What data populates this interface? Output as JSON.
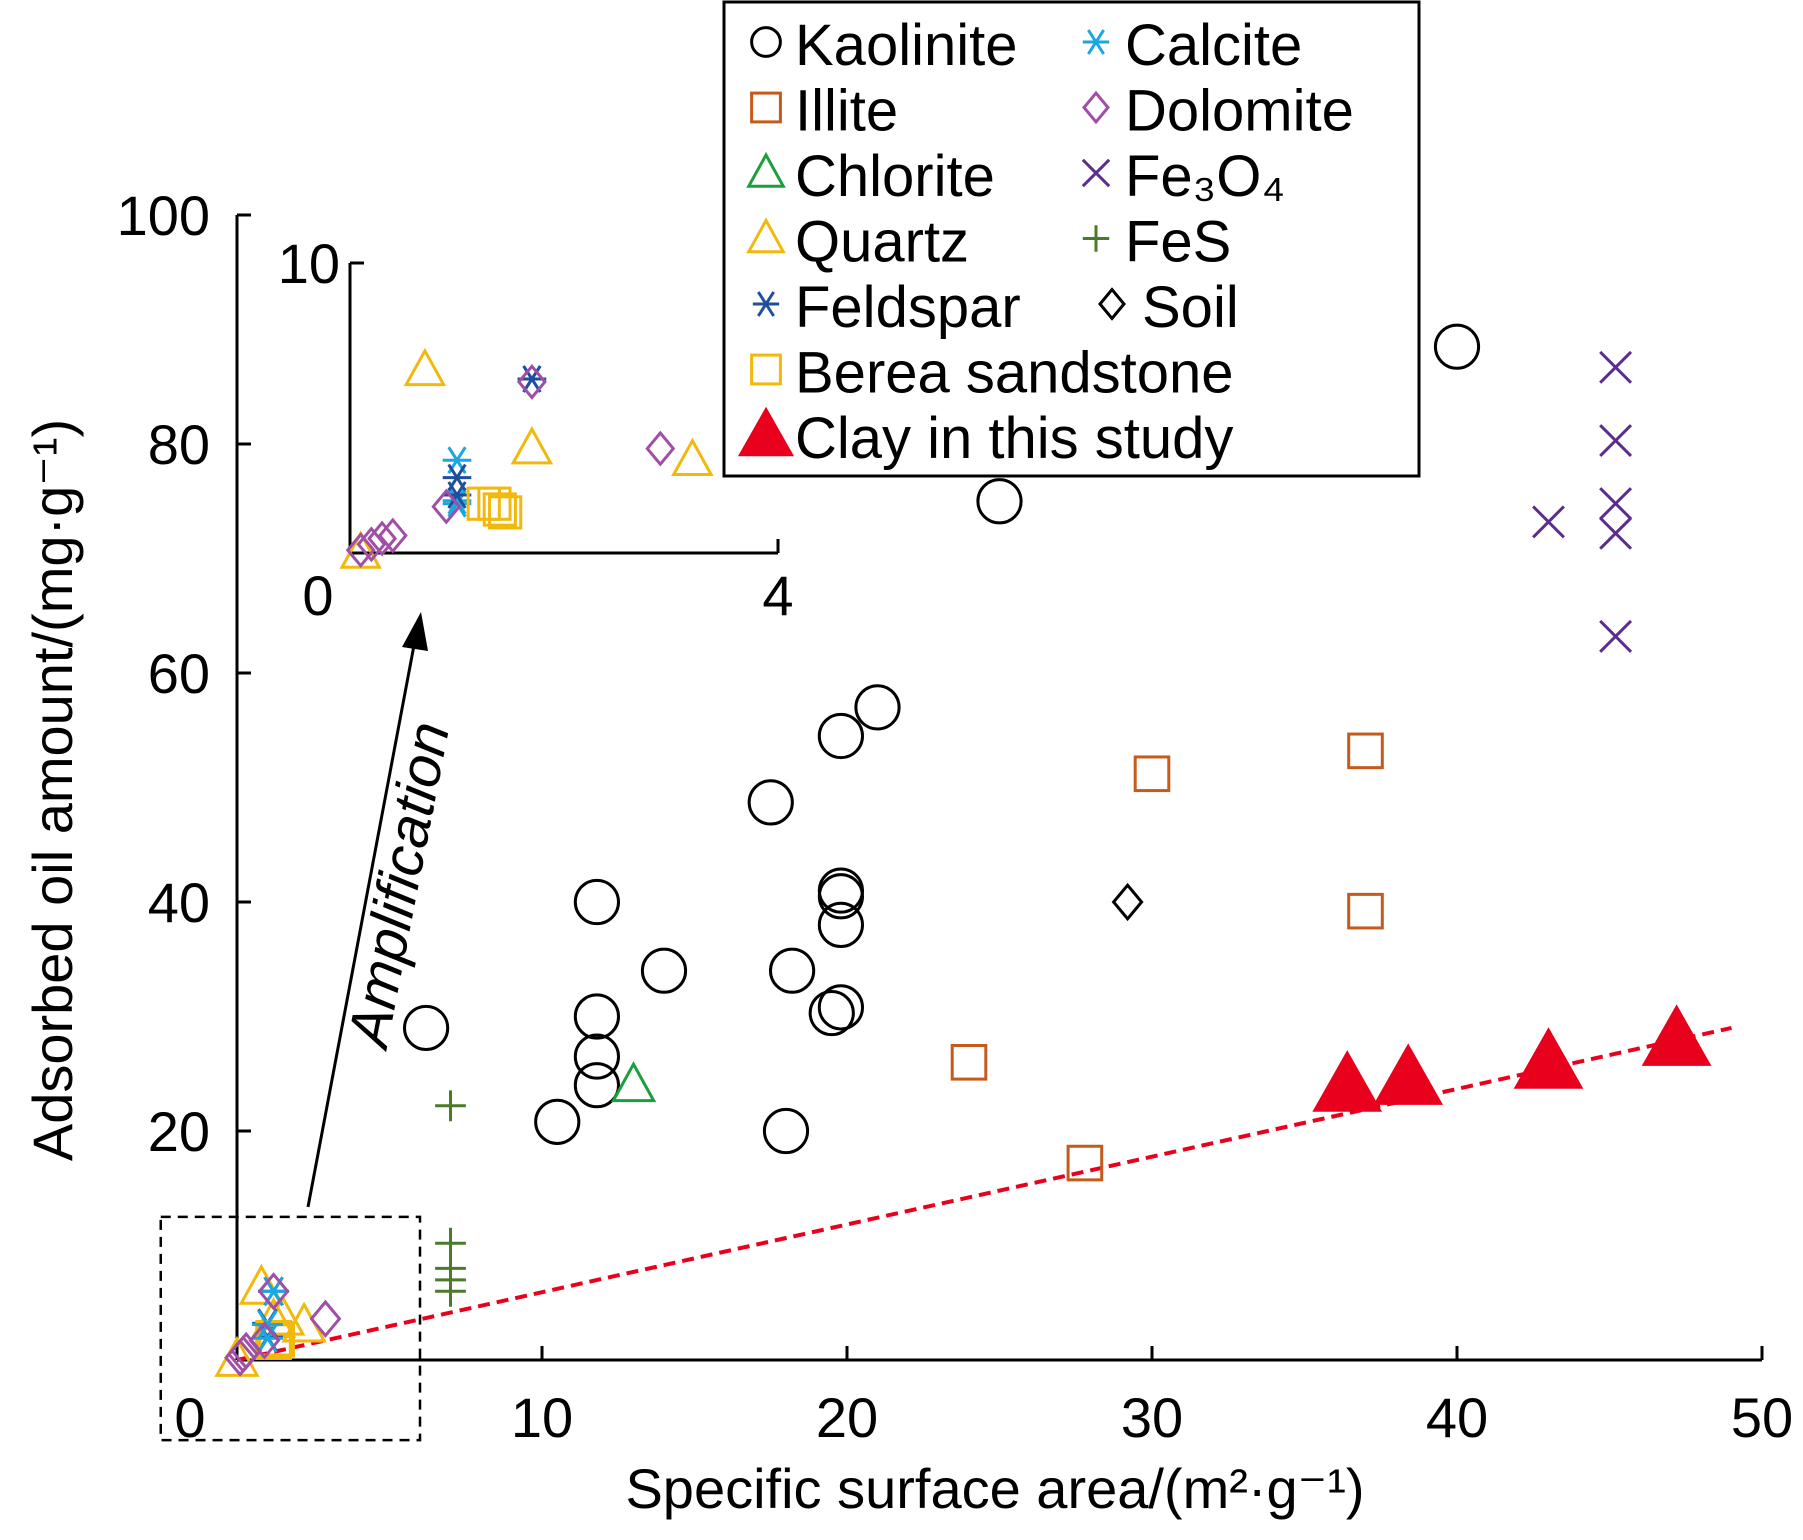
{
  "chart_data": {
    "type": "scatter",
    "xlabel": "Specific surface area/(m²·g⁻¹)",
    "ylabel": "Adsorbed oil amount/(mg·g⁻¹)",
    "xlim": [
      0,
      50
    ],
    "ylim": [
      0,
      100
    ],
    "x_ticks": [
      "0",
      "10",
      "20",
      "30",
      "40",
      "50"
    ],
    "y_ticks": [
      "20",
      "40",
      "60",
      "80",
      "100"
    ],
    "grid": false,
    "legend_position": "top-right",
    "series": [
      {
        "name": "Kaolinite",
        "marker": "circle",
        "color": "#000000",
        "points": [
          [
            6.2,
            29
          ],
          [
            10.5,
            20.8
          ],
          [
            11.8,
            40
          ],
          [
            11.8,
            30
          ],
          [
            11.8,
            26.5
          ],
          [
            11.8,
            24
          ],
          [
            14,
            34
          ],
          [
            17.5,
            48.7
          ],
          [
            18,
            20
          ],
          [
            18.2,
            34
          ],
          [
            19.5,
            30.3
          ],
          [
            19.8,
            30.8
          ],
          [
            19.8,
            38
          ],
          [
            19.8,
            40.5
          ],
          [
            19.8,
            41
          ],
          [
            19.8,
            54.5
          ],
          [
            21,
            57
          ],
          [
            25,
            75
          ],
          [
            40,
            88.5
          ]
        ]
      },
      {
        "name": "Illite",
        "marker": "square",
        "color": "#c55a1c",
        "points": [
          [
            24,
            26
          ],
          [
            27.8,
            17.2
          ],
          [
            30,
            51.2
          ],
          [
            37,
            53.2
          ],
          [
            37,
            39.2
          ]
        ]
      },
      {
        "name": "Chlorite",
        "marker": "triangle",
        "color": "#1a9f3c",
        "points": [
          [
            13,
            24
          ]
        ]
      },
      {
        "name": "Quartz",
        "marker": "triangle",
        "color": "#f2b90c",
        "points": [
          [
            0,
            0
          ],
          [
            0.8,
            6.3
          ],
          [
            1.2,
            3.4
          ],
          [
            1.5,
            3.6
          ],
          [
            2.2,
            3.0
          ]
        ]
      },
      {
        "name": "Feldspar",
        "marker": "asterisk",
        "color": "#1f4e9e",
        "points": [
          [
            1.0,
            3.2
          ],
          [
            1.0,
            2.0
          ],
          [
            1.2,
            6
          ]
        ]
      },
      {
        "name": "Berea sandstone",
        "marker": "square",
        "color": "#f2b90c",
        "points": [
          [
            1.2,
            1.9
          ],
          [
            1.3,
            1.8
          ],
          [
            1.2,
            1.6
          ]
        ]
      },
      {
        "name": "Calcite",
        "marker": "asterisk",
        "color": "#1aa7e0",
        "points": [
          [
            1.0,
            3.1
          ],
          [
            1.0,
            1.9
          ],
          [
            1.2,
            6
          ]
        ]
      },
      {
        "name": "Dolomite",
        "marker": "diamond",
        "color": "#a04ea6",
        "points": [
          [
            0.1,
            0.2
          ],
          [
            0.2,
            0.5
          ],
          [
            0.3,
            0.8
          ],
          [
            0.9,
            1.7
          ],
          [
            1.2,
            6
          ],
          [
            2.9,
            3.6
          ]
        ]
      },
      {
        "name": "Fe₃O₄",
        "marker": "x",
        "color": "#5b2d8e",
        "points": [
          [
            43,
            73.2
          ],
          [
            45.2,
            86.7
          ],
          [
            45.2,
            80.3
          ],
          [
            45.2,
            74.8
          ],
          [
            45.2,
            72.2
          ],
          [
            45.2,
            63.2
          ]
        ]
      },
      {
        "name": "FeS",
        "marker": "plus",
        "color": "#4b7a2a",
        "points": [
          [
            7,
            22.2
          ],
          [
            7,
            10.2
          ],
          [
            7,
            8
          ],
          [
            7,
            7
          ],
          [
            7,
            6
          ]
        ]
      },
      {
        "name": "Soil",
        "marker": "diamond",
        "color": "#000000",
        "points": [
          [
            29.2,
            40
          ]
        ]
      },
      {
        "name": "Clay in this study",
        "marker": "filled-triangle",
        "color": "#e8001c",
        "points": [
          [
            36.4,
            24
          ],
          [
            38.4,
            24.6
          ],
          [
            43,
            26
          ],
          [
            47.2,
            28
          ]
        ]
      }
    ],
    "trendline": {
      "color": "#e8001c",
      "style": "dashed",
      "points": [
        [
          0,
          0
        ],
        [
          49,
          29
        ]
      ]
    },
    "inset": {
      "xlim": [
        0,
        4
      ],
      "ylim": [
        0,
        10
      ],
      "x_ticks": [
        "0",
        "4"
      ],
      "y_ticks": [
        "10"
      ],
      "source_region": {
        "x": [
          -2.5,
          6
        ],
        "y": [
          -7,
          12.5
        ]
      },
      "series": [
        {
          "name": "Quartz",
          "marker": "triangle",
          "color": "#f2b90c",
          "points": [
            [
              0.1,
              0
            ],
            [
              0.7,
              6.3
            ],
            [
              1.7,
              3.6
            ],
            [
              3.2,
              3.2
            ]
          ]
        },
        {
          "name": "Calcite",
          "marker": "asterisk",
          "color": "#1aa7e0",
          "points": [
            [
              1.0,
              3.2
            ],
            [
              1.0,
              1.8
            ],
            [
              1.0,
              1.7
            ],
            [
              1.7,
              6.0
            ]
          ]
        },
        {
          "name": "Feldspar",
          "marker": "asterisk",
          "color": "#1f4e9e",
          "points": [
            [
              1.0,
              2.6
            ],
            [
              1.0,
              2.0
            ],
            [
              1.7,
              6.0
            ]
          ]
        },
        {
          "name": "Dolomite",
          "marker": "diamond",
          "color": "#a04ea6",
          "points": [
            [
              0.1,
              0.1
            ],
            [
              0.2,
              0.3
            ],
            [
              0.3,
              0.5
            ],
            [
              0.4,
              0.6
            ],
            [
              0.9,
              1.6
            ],
            [
              1.7,
              5.9
            ],
            [
              2.9,
              3.6
            ]
          ]
        },
        {
          "name": "Berea sandstone",
          "marker": "square",
          "color": "#f2b90c",
          "points": [
            [
              1.25,
              1.7
            ],
            [
              1.35,
              1.7
            ],
            [
              1.4,
              1.5
            ],
            [
              1.45,
              1.4
            ]
          ]
        }
      ]
    },
    "annotations": [
      {
        "text": "Amplification"
      }
    ]
  }
}
